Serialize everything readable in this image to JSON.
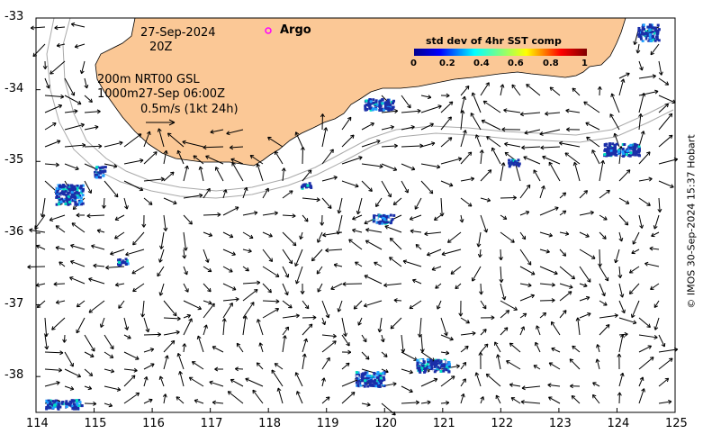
{
  "map": {
    "lon_range": [
      114,
      125
    ],
    "lat_range": [
      -38.5,
      -33
    ],
    "x_ticks": [
      "114",
      "115",
      "116",
      "117",
      "118",
      "119",
      "120",
      "121",
      "122",
      "123",
      "124",
      "125"
    ],
    "y_ticks": [
      "-33",
      "-34",
      "-35",
      "-36",
      "-37",
      "-38"
    ]
  },
  "annotations": {
    "date": "27-Sep-2024",
    "time": "20Z",
    "line1": "200m  NRT00 GSL",
    "line2": "1000m27-Sep 06:00Z",
    "scale": "0.5m/s (1kt 24h)"
  },
  "legend": {
    "argo_label": "Argo",
    "argo_color": "#ff00ff"
  },
  "colorbar": {
    "title": "std dev of 4hr SST comp",
    "ticks": [
      "0",
      "0.2",
      "0.4",
      "0.6",
      "0.8",
      "1"
    ]
  },
  "credit": "© IMOS 30-Sep-2024 15:37 Hobart",
  "colors": {
    "land": "#fbc896",
    "contour": "#a9a9a9",
    "sst_patch": "#1a2ea8"
  }
}
